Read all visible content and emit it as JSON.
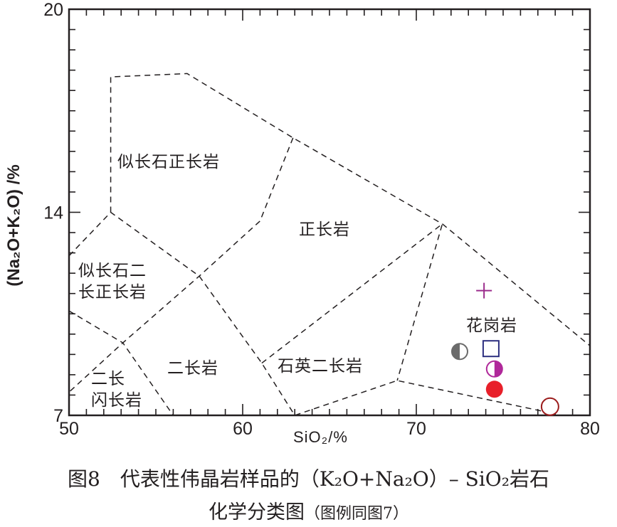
{
  "chart_data": {
    "type": "scatter",
    "title": "",
    "xlabel": "SiO₂/%",
    "ylabel": "(Na₂O+K₂O) /%",
    "xlim": [
      50,
      80
    ],
    "ylim": [
      7,
      20
    ],
    "x_tick_labels": [
      "50",
      "60",
      "70",
      "80"
    ],
    "y_tick_labels": [
      "7",
      "14",
      "20"
    ],
    "grid": false,
    "legend": "none",
    "regions": [
      "似长石正长岩",
      "正长岩",
      "似长石二",
      "长正长岩",
      "二长岩",
      "石英二长岩",
      "花岗岩",
      "二长",
      "闪长岩"
    ],
    "boundaries": [
      [
        [
          52.4,
          14.0
        ],
        [
          52.4,
          18.0
        ],
        [
          56.8,
          18.1
        ],
        [
          62.9,
          16.2
        ],
        [
          71.5,
          13.6
        ],
        [
          80,
          9.4
        ]
      ],
      [
        [
          62.9,
          16.2
        ],
        [
          61.0,
          13.7
        ],
        [
          57.5,
          11.8
        ],
        [
          53.1,
          9.5
        ],
        [
          50,
          7.8
        ]
      ],
      [
        [
          50,
          12.5
        ],
        [
          52.4,
          14.0
        ],
        [
          57.5,
          11.8
        ],
        [
          61.1,
          8.8
        ],
        [
          63.0,
          7.0
        ],
        [
          68.9,
          8.2
        ],
        [
          78.0,
          7.05
        ]
      ],
      [
        [
          50,
          10.6
        ],
        [
          53.1,
          9.5
        ],
        [
          56.0,
          7.0
        ]
      ],
      [
        [
          61.1,
          8.8
        ],
        [
          71.5,
          13.6
        ],
        [
          68.9,
          8.2
        ]
      ]
    ],
    "points": [
      {
        "symbol": "cross",
        "x": 73.9,
        "y": 11.3,
        "color": "#9b2c8c"
      },
      {
        "symbol": "half-circle-left",
        "x": 72.5,
        "y": 9.2,
        "color": "#6b6b6b"
      },
      {
        "symbol": "open-square",
        "x": 74.3,
        "y": 9.3,
        "color": "#2e3080"
      },
      {
        "symbol": "half-circle-right",
        "x": 74.5,
        "y": 8.6,
        "color": "#b0289a"
      },
      {
        "symbol": "filled-circle",
        "x": 74.5,
        "y": 7.9,
        "color": "#e8202a"
      },
      {
        "symbol": "open-circle",
        "x": 77.7,
        "y": 7.3,
        "color": "#9b1c1c"
      }
    ]
  },
  "caption": {
    "line1": "图8　代表性伟晶岩样品的（K₂O+Na₂O）– SiO₂岩石",
    "line2_main": "化学分类图",
    "line2_note": "（图例同图7）"
  }
}
